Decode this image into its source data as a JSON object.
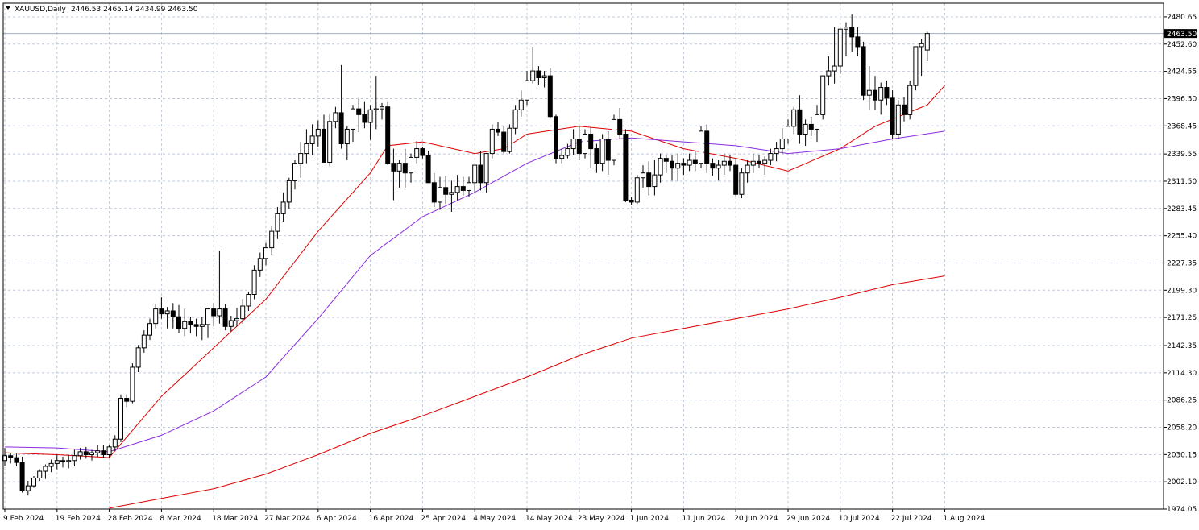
{
  "header": {
    "symbol_label": "XAUUSD,Daily",
    "ohlc_label": "2446.53 2465.14 2434.99 2463.50"
  },
  "colors": {
    "background": "#ffffff",
    "grid": "#c0c8d8",
    "candle": "#000000",
    "ma_fast": "#e00000",
    "ma_mid": "#8a2be2",
    "ma_slow": "#e00000",
    "price_line": "#a0b0c8"
  },
  "chart_data": {
    "type": "candlestick",
    "symbol": "XAUUSD",
    "timeframe": "Daily",
    "y_axis": {
      "ylim": [
        1974.05,
        2494.7
      ],
      "tick_labels": [
        "2480.65",
        "2452.60",
        "2424.55",
        "2396.50",
        "2368.45",
        "2339.55",
        "2311.50",
        "2283.45",
        "2255.40",
        "2227.35",
        "2199.30",
        "2171.25",
        "2142.35",
        "2114.30",
        "2086.25",
        "2058.20",
        "2030.15",
        "2002.10",
        "1974.05"
      ],
      "tick_values": [
        2480.65,
        2452.6,
        2424.55,
        2396.5,
        2368.45,
        2339.55,
        2311.5,
        2283.45,
        2255.4,
        2227.35,
        2199.3,
        2171.25,
        2142.35,
        2114.3,
        2086.25,
        2058.2,
        2030.15,
        2002.1,
        1974.05
      ]
    },
    "x_axis": {
      "tick_labels": [
        "9 Feb 2024",
        "19 Feb 2024",
        "28 Feb 2024",
        "8 Mar 2024",
        "18 Mar 2024",
        "27 Mar 2024",
        "6 Apr 2024",
        "16 Apr 2024",
        "25 Apr 2024",
        "4 May 2024",
        "14 May 2024",
        "23 May 2024",
        "1 Jun 2024",
        "11 Jun 2024",
        "20 Jun 2024",
        "29 Jun 2024",
        "10 Jul 2024",
        "22 Jul 2024",
        "1 Aug 2024"
      ],
      "tick_bar_index": [
        0,
        9,
        18,
        27,
        36,
        45,
        54,
        63,
        72,
        81,
        90,
        99,
        108,
        117,
        126,
        135,
        144,
        153,
        162
      ]
    },
    "current_price": 2463.5,
    "current_price_label": "2463.50",
    "candles_ohlc": [
      [
        2024,
        2037,
        2018,
        2029
      ],
      [
        2029,
        2032,
        2021,
        2027
      ],
      [
        2027,
        2031,
        2018,
        2022
      ],
      [
        2022,
        2028,
        1991,
        1993
      ],
      [
        1993,
        2003,
        1988,
        1998
      ],
      [
        1998,
        2008,
        1996,
        2006
      ],
      [
        2006,
        2015,
        2003,
        2013
      ],
      [
        2013,
        2020,
        2005,
        2018
      ],
      [
        2018,
        2025,
        2012,
        2021
      ],
      [
        2021,
        2030,
        2015,
        2024
      ],
      [
        2024,
        2028,
        2017,
        2023
      ],
      [
        2023,
        2030,
        2016,
        2024
      ],
      [
        2024,
        2035,
        2018,
        2029
      ],
      [
        2029,
        2037,
        2025,
        2033
      ],
      [
        2033,
        2038,
        2026,
        2030
      ],
      [
        2030,
        2035,
        2024,
        2032
      ],
      [
        2032,
        2040,
        2028,
        2034
      ],
      [
        2034,
        2040,
        2027,
        2030
      ],
      [
        2030,
        2040,
        2027,
        2038
      ],
      [
        2038,
        2050,
        2034,
        2046
      ],
      [
        2046,
        2092,
        2043,
        2088
      ],
      [
        2088,
        2092,
        2079,
        2085
      ],
      [
        2085,
        2124,
        2083,
        2120
      ],
      [
        2120,
        2143,
        2115,
        2140
      ],
      [
        2140,
        2158,
        2135,
        2153
      ],
      [
        2153,
        2170,
        2148,
        2165
      ],
      [
        2165,
        2185,
        2160,
        2180
      ],
      [
        2180,
        2192,
        2170,
        2175
      ],
      [
        2175,
        2182,
        2160,
        2178
      ],
      [
        2178,
        2186,
        2160,
        2172
      ],
      [
        2172,
        2184,
        2155,
        2160
      ],
      [
        2160,
        2180,
        2152,
        2167
      ],
      [
        2167,
        2172,
        2155,
        2164
      ],
      [
        2164,
        2170,
        2152,
        2162
      ],
      [
        2162,
        2172,
        2148,
        2164
      ],
      [
        2164,
        2178,
        2150,
        2180
      ],
      [
        2180,
        2186,
        2162,
        2173
      ],
      [
        2173,
        2240,
        2165,
        2180
      ],
      [
        2180,
        2185,
        2158,
        2162
      ],
      [
        2162,
        2173,
        2157,
        2168
      ],
      [
        2168,
        2181,
        2162,
        2170
      ],
      [
        2170,
        2190,
        2165,
        2183
      ],
      [
        2183,
        2198,
        2178,
        2195
      ],
      [
        2195,
        2225,
        2190,
        2220
      ],
      [
        2220,
        2238,
        2213,
        2232
      ],
      [
        2232,
        2248,
        2225,
        2243
      ],
      [
        2243,
        2265,
        2236,
        2260
      ],
      [
        2260,
        2285,
        2252,
        2278
      ],
      [
        2278,
        2300,
        2270,
        2290
      ],
      [
        2290,
        2315,
        2283,
        2312
      ],
      [
        2312,
        2333,
        2303,
        2330
      ],
      [
        2330,
        2352,
        2315,
        2340
      ],
      [
        2340,
        2365,
        2330,
        2350
      ],
      [
        2350,
        2370,
        2338,
        2358
      ],
      [
        2358,
        2374,
        2347,
        2365
      ],
      [
        2365,
        2380,
        2348,
        2331
      ],
      [
        2331,
        2380,
        2327,
        2373
      ],
      [
        2373,
        2388,
        2366,
        2382
      ],
      [
        2382,
        2431,
        2345,
        2350
      ],
      [
        2350,
        2368,
        2333,
        2365
      ],
      [
        2365,
        2390,
        2352,
        2386
      ],
      [
        2386,
        2396,
        2362,
        2380
      ],
      [
        2380,
        2393,
        2366,
        2372
      ],
      [
        2372,
        2390,
        2354,
        2385
      ],
      [
        2385,
        2420,
        2365,
        2386
      ],
      [
        2386,
        2392,
        2375,
        2388
      ],
      [
        2388,
        2393,
        2328,
        2330
      ],
      [
        2330,
        2345,
        2292,
        2322
      ],
      [
        2322,
        2333,
        2305,
        2330
      ],
      [
        2330,
        2345,
        2305,
        2320
      ],
      [
        2320,
        2340,
        2310,
        2336
      ],
      [
        2336,
        2353,
        2330,
        2345
      ],
      [
        2345,
        2347,
        2335,
        2338
      ],
      [
        2338,
        2343,
        2316,
        2310
      ],
      [
        2310,
        2320,
        2285,
        2290
      ],
      [
        2290,
        2316,
        2282,
        2305
      ],
      [
        2305,
        2317,
        2288,
        2298
      ],
      [
        2298,
        2312,
        2280,
        2300
      ],
      [
        2300,
        2318,
        2292,
        2306
      ],
      [
        2306,
        2316,
        2297,
        2302
      ],
      [
        2302,
        2316,
        2295,
        2310
      ],
      [
        2310,
        2325,
        2300,
        2328
      ],
      [
        2328,
        2343,
        2302,
        2310
      ],
      [
        2310,
        2322,
        2300,
        2340
      ],
      [
        2340,
        2370,
        2335,
        2365
      ],
      [
        2365,
        2372,
        2358,
        2362
      ],
      [
        2362,
        2368,
        2340,
        2342
      ],
      [
        2342,
        2370,
        2340,
        2366
      ],
      [
        2366,
        2390,
        2360,
        2385
      ],
      [
        2385,
        2405,
        2378,
        2395
      ],
      [
        2395,
        2425,
        2390,
        2415
      ],
      [
        2415,
        2450,
        2412,
        2425
      ],
      [
        2425,
        2430,
        2411,
        2418
      ],
      [
        2418,
        2425,
        2408,
        2420
      ],
      [
        2420,
        2428,
        2376,
        2378
      ],
      [
        2378,
        2380,
        2330,
        2335
      ],
      [
        2335,
        2345,
        2330,
        2338
      ],
      [
        2338,
        2350,
        2335,
        2345
      ],
      [
        2345,
        2365,
        2338,
        2355
      ],
      [
        2355,
        2368,
        2333,
        2340
      ],
      [
        2340,
        2365,
        2335,
        2360
      ],
      [
        2360,
        2367,
        2325,
        2345
      ],
      [
        2345,
        2350,
        2320,
        2330
      ],
      [
        2330,
        2360,
        2322,
        2355
      ],
      [
        2355,
        2363,
        2318,
        2333
      ],
      [
        2333,
        2380,
        2328,
        2375
      ],
      [
        2375,
        2387,
        2355,
        2360
      ],
      [
        2360,
        2365,
        2290,
        2292
      ],
      [
        2292,
        2295,
        2287,
        2290
      ],
      [
        2290,
        2318,
        2288,
        2315
      ],
      [
        2315,
        2328,
        2305,
        2320
      ],
      [
        2320,
        2332,
        2297,
        2306
      ],
      [
        2306,
        2333,
        2297,
        2318
      ],
      [
        2318,
        2340,
        2310,
        2335
      ],
      [
        2335,
        2338,
        2320,
        2332
      ],
      [
        2332,
        2338,
        2312,
        2325
      ],
      [
        2325,
        2340,
        2312,
        2330
      ],
      [
        2330,
        2335,
        2318,
        2328
      ],
      [
        2328,
        2340,
        2322,
        2333
      ],
      [
        2333,
        2343,
        2322,
        2330
      ],
      [
        2330,
        2368,
        2325,
        2363
      ],
      [
        2363,
        2370,
        2320,
        2330
      ],
      [
        2330,
        2335,
        2317,
        2325
      ],
      [
        2325,
        2333,
        2312,
        2328
      ],
      [
        2328,
        2340,
        2318,
        2332
      ],
      [
        2332,
        2338,
        2322,
        2328
      ],
      [
        2328,
        2335,
        2296,
        2298
      ],
      [
        2298,
        2325,
        2294,
        2320
      ],
      [
        2320,
        2333,
        2310,
        2328
      ],
      [
        2328,
        2340,
        2320,
        2332
      ],
      [
        2332,
        2338,
        2325,
        2330
      ],
      [
        2330,
        2337,
        2318,
        2333
      ],
      [
        2333,
        2345,
        2328,
        2340
      ],
      [
        2340,
        2352,
        2332,
        2345
      ],
      [
        2345,
        2366,
        2340,
        2355
      ],
      [
        2355,
        2375,
        2350,
        2368
      ],
      [
        2368,
        2388,
        2360,
        2385
      ],
      [
        2385,
        2400,
        2350,
        2360
      ],
      [
        2360,
        2375,
        2348,
        2370
      ],
      [
        2370,
        2378,
        2358,
        2365
      ],
      [
        2365,
        2390,
        2352,
        2380
      ],
      [
        2380,
        2400,
        2375,
        2420
      ],
      [
        2420,
        2440,
        2410,
        2425
      ],
      [
        2425,
        2470,
        2412,
        2430
      ],
      [
        2430,
        2460,
        2422,
        2468
      ],
      [
        2468,
        2475,
        2440,
        2470
      ],
      [
        2470,
        2483,
        2445,
        2460
      ],
      [
        2460,
        2470,
        2440,
        2450
      ],
      [
        2450,
        2455,
        2395,
        2400
      ],
      [
        2400,
        2430,
        2385,
        2405
      ],
      [
        2405,
        2420,
        2385,
        2395
      ],
      [
        2395,
        2413,
        2380,
        2408
      ],
      [
        2408,
        2415,
        2390,
        2397
      ],
      [
        2397,
        2405,
        2355,
        2360
      ],
      [
        2360,
        2395,
        2355,
        2390
      ],
      [
        2390,
        2398,
        2373,
        2380
      ],
      [
        2380,
        2415,
        2375,
        2410
      ],
      [
        2410,
        2450,
        2405,
        2450
      ],
      [
        2450,
        2458,
        2420,
        2453
      ],
      [
        2446.53,
        2465.14,
        2434.99,
        2463.5
      ]
    ],
    "series": [
      {
        "name": "",
        "type": "line",
        "color": "#e00000",
        "values": [
          [
            0,
            2032
          ],
          [
            9,
            2030
          ],
          [
            18,
            2027
          ],
          [
            27,
            2090
          ],
          [
            36,
            2140
          ],
          [
            45,
            2190
          ],
          [
            54,
            2260
          ],
          [
            63,
            2320
          ],
          [
            66,
            2348
          ],
          [
            72,
            2352
          ],
          [
            81,
            2340
          ],
          [
            86,
            2345
          ],
          [
            90,
            2360
          ],
          [
            99,
            2368
          ],
          [
            108,
            2363
          ],
          [
            117,
            2345
          ],
          [
            126,
            2335
          ],
          [
            135,
            2322
          ],
          [
            144,
            2345
          ],
          [
            150,
            2368
          ],
          [
            159,
            2390
          ],
          [
            162,
            2410
          ]
        ]
      },
      {
        "name": "",
        "type": "line",
        "color": "#8a2be2",
        "values": [
          [
            0,
            2038
          ],
          [
            9,
            2037
          ],
          [
            18,
            2033
          ],
          [
            27,
            2050
          ],
          [
            36,
            2075
          ],
          [
            45,
            2110
          ],
          [
            54,
            2170
          ],
          [
            63,
            2235
          ],
          [
            72,
            2275
          ],
          [
            81,
            2300
          ],
          [
            90,
            2330
          ],
          [
            99,
            2352
          ],
          [
            108,
            2356
          ],
          [
            117,
            2352
          ],
          [
            126,
            2348
          ],
          [
            135,
            2340
          ],
          [
            144,
            2345
          ],
          [
            153,
            2355
          ],
          [
            162,
            2363
          ]
        ]
      },
      {
        "name": "",
        "type": "line",
        "color": "#e00000",
        "values": [
          [
            18,
            1975
          ],
          [
            27,
            1985
          ],
          [
            36,
            1995
          ],
          [
            45,
            2010
          ],
          [
            54,
            2030
          ],
          [
            63,
            2052
          ],
          [
            72,
            2070
          ],
          [
            81,
            2090
          ],
          [
            90,
            2110
          ],
          [
            99,
            2132
          ],
          [
            108,
            2150
          ],
          [
            117,
            2160
          ],
          [
            126,
            2170
          ],
          [
            135,
            2180
          ],
          [
            144,
            2192
          ],
          [
            153,
            2205
          ],
          [
            162,
            2214
          ]
        ]
      }
    ]
  }
}
